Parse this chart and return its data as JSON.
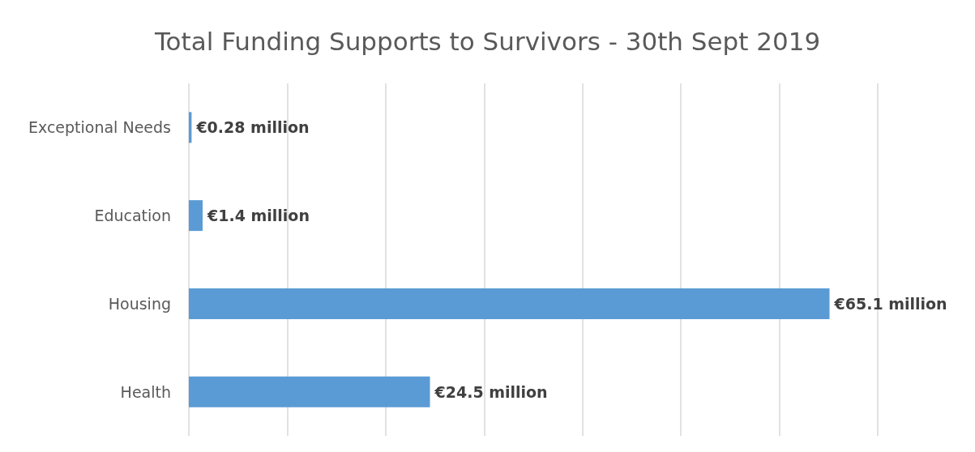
{
  "chart_data": {
    "type": "bar",
    "orientation": "horizontal",
    "title": "Total Funding Supports to Survivors - 30th Sept 2019",
    "categories": [
      "Exceptional Needs",
      "Education",
      "Housing",
      "Health"
    ],
    "values": [
      0.28,
      1.4,
      65.1,
      24.5
    ],
    "color": "#5b9bd5",
    "value_labels": [
      "€0.28 million",
      "€1.4 million",
      "€65.1 million",
      "€24.5 million"
    ],
    "xlim": [
      0,
      70
    ],
    "xticks": [
      {
        "value": 0,
        "label": null
      },
      {
        "value": 10,
        "label": null
      },
      {
        "value": 20,
        "label": null
      },
      {
        "value": 30,
        "label": null
      },
      {
        "value": 40,
        "label": null
      },
      {
        "value": 50,
        "label": null
      },
      {
        "value": 60,
        "label": null
      },
      {
        "value": 70,
        "label": null
      }
    ],
    "grid": "x",
    "tick_labels": "y"
  }
}
